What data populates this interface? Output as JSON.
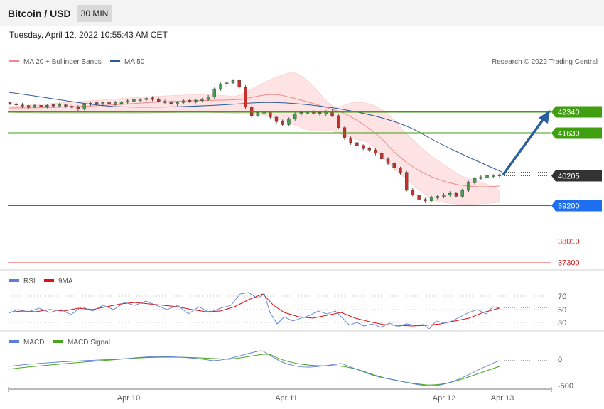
{
  "header": {
    "symbol": "Bitcoin / USD",
    "timeframe": "30 MIN"
  },
  "timestamp": "Tuesday, April 12, 2022 10:55:43 AM CET",
  "copyright": "Research © 2022 Trading Central",
  "legend": {
    "price": [
      {
        "label": "MA 20 + Bollinger Bands",
        "color": "#f08a8a"
      },
      {
        "label": "MA 50",
        "color": "#2c5a9a"
      }
    ],
    "rsi": [
      {
        "label": "RSI",
        "color": "#5b7fd6"
      },
      {
        "label": "9MA",
        "color": "#e01010"
      }
    ],
    "macd": [
      {
        "label": "MACD",
        "color": "#5b7fd6"
      },
      {
        "label": "MACD Signal",
        "color": "#4aa51e"
      }
    ]
  },
  "chart_data": {
    "type": "candlestick",
    "x_ticks": [
      "Apr 10",
      "Apr 11",
      "Apr 12",
      "Apr 13"
    ],
    "price_levels": [
      {
        "value": 42340,
        "label": "42340",
        "style": "resistance",
        "color": "#3f9f10"
      },
      {
        "value": 41630,
        "label": "41630",
        "style": "resistance",
        "color": "#3f9f10"
      },
      {
        "value": 40205,
        "label": "40205",
        "style": "last",
        "color": "#333333"
      },
      {
        "value": 39200,
        "label": "39200",
        "style": "pivot",
        "color": "#1e6ef0"
      },
      {
        "value": 38010,
        "label": "38010",
        "style": "support",
        "color": "#d02020"
      },
      {
        "value": 37300,
        "label": "37300",
        "style": "support",
        "color": "#d02020"
      }
    ],
    "forecast_arrow": {
      "from": 40205,
      "to": 42340,
      "direction": "up",
      "color": "#2c5f9e"
    },
    "rsi_levels": [
      {
        "value": 70,
        "label": "70"
      },
      {
        "value": 50,
        "label": "50"
      },
      {
        "value": 30,
        "label": "30"
      }
    ],
    "macd_levels": [
      {
        "value": 0,
        "label": "0"
      },
      {
        "value": -500,
        "label": "-500"
      }
    ],
    "candles_close": [
      42600,
      42560,
      42520,
      42500,
      42530,
      42510,
      42550,
      42540,
      42560,
      42520,
      42480,
      42420,
      42580,
      42620,
      42600,
      42640,
      42590,
      42620,
      42650,
      42700,
      42720,
      42740,
      42780,
      42760,
      42680,
      42640,
      42600,
      42640,
      42700,
      42680,
      42720,
      42740,
      42820,
      43100,
      43250,
      43300,
      43380,
      43150,
      42500,
      42200,
      42300,
      42320,
      42150,
      42000,
      41900,
      42100,
      42250,
      42300,
      42320,
      42300,
      42260,
      42350,
      42200,
      41800,
      41450,
      41300,
      41200,
      41100,
      41050,
      40950,
      40750,
      40600,
      40450,
      40300,
      39700,
      39550,
      39400,
      39350,
      39450,
      39500,
      39550,
      39600,
      39500,
      39700,
      39950,
      40100,
      40150,
      40180,
      40200,
      40205
    ]
  }
}
